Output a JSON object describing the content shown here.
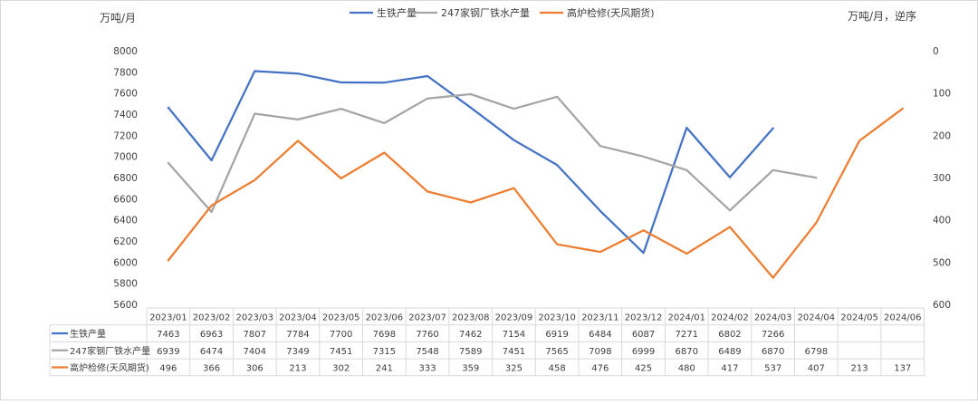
{
  "chart_data": {
    "type": "line",
    "title": "",
    "left_axis": {
      "label": "万吨/月",
      "ylim": [
        5600,
        8000
      ],
      "ticks": [
        5600,
        5800,
        6000,
        6200,
        6400,
        6600,
        6800,
        7000,
        7200,
        7400,
        7600,
        7800,
        8000
      ]
    },
    "right_axis": {
      "label": "万吨/月，逆序",
      "ylim": [
        0,
        600
      ],
      "reversed": true,
      "ticks": [
        0,
        100,
        200,
        300,
        400,
        500,
        600
      ]
    },
    "categories": [
      "2023/01",
      "2023/02",
      "2023/03",
      "2023/04",
      "2023/05",
      "2023/06",
      "2023/07",
      "2023/08",
      "2023/09",
      "2023/10",
      "2023/11",
      "2023/12",
      "2024/01",
      "2024/02",
      "2024/03",
      "2024/04",
      "2024/05",
      "2024/06"
    ],
    "series": [
      {
        "name": "生铁产量",
        "axis": "left",
        "color": "#4472C4",
        "values": [
          7463,
          6963,
          7807,
          7784,
          7700,
          7698,
          7760,
          7462,
          7154,
          6919,
          6484,
          6087,
          7271,
          6802,
          7266,
          null,
          null,
          null
        ]
      },
      {
        "name": "247家钢厂铁水产量",
        "axis": "left",
        "color": "#A5A5A5",
        "values": [
          6939,
          6474,
          7404,
          7349,
          7451,
          7315,
          7548,
          7589,
          7451,
          7565,
          7098,
          6999,
          6870,
          6489,
          6870,
          6798,
          null,
          null
        ]
      },
      {
        "name": "高炉检修(天风期货)",
        "axis": "right",
        "color": "#ED7D31",
        "values": [
          496,
          366,
          306,
          213,
          302,
          241,
          333,
          359,
          325,
          458,
          476,
          425,
          480,
          417,
          537,
          407,
          213,
          137
        ]
      }
    ],
    "legend_position": "top",
    "grid": false,
    "data_table": true
  }
}
